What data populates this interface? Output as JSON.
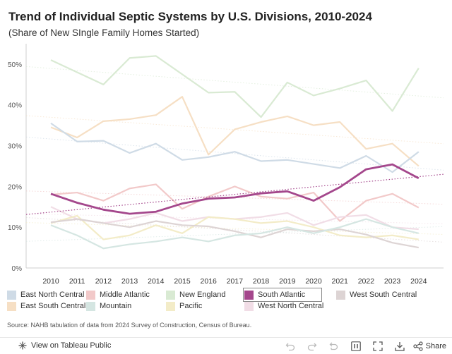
{
  "header": {
    "title": "Trend of Individual Septic Systems by U.S. Divisions, 2010-2024",
    "subtitle": "(Share of New SIngle Family Homes Started)"
  },
  "source": "Source: NAHB tabulation of data from 2024 Survey of Construction, Census of Bureau.",
  "footer": {
    "tableau_label": "View on Tableau Public",
    "share_label": "Share",
    "icons": [
      "undo-icon",
      "redo-icon",
      "revert-icon",
      "pause-icon",
      "fullscreen-icon",
      "download-icon",
      "share-icon"
    ]
  },
  "chart_data": {
    "type": "line",
    "title": "Trend of Individual Septic Systems by U.S. Divisions, 2010-2024",
    "subtitle": "(Share of New SIngle Family Homes Started)",
    "x": [
      2010,
      2011,
      2012,
      2013,
      2014,
      2015,
      2016,
      2017,
      2018,
      2019,
      2020,
      2021,
      2022,
      2023,
      2024
    ],
    "ylim": [
      0,
      55
    ],
    "yticks": [
      0,
      10,
      20,
      30,
      40,
      50
    ],
    "ytick_labels": [
      "0%",
      "10%",
      "20%",
      "30%",
      "40%",
      "50%"
    ],
    "highlighted": "South Atlantic",
    "trend_line_for": "South Atlantic",
    "series": [
      {
        "name": "New England",
        "color": "#d9ead3",
        "values": [
          51.0,
          48.0,
          45.0,
          51.5,
          52.0,
          47.5,
          43.0,
          43.2,
          37.0,
          45.5,
          42.3,
          44.0,
          46.0,
          38.5,
          49.0
        ]
      },
      {
        "name": "East South Central",
        "color": "#f6dfc4",
        "values": [
          34.5,
          32.0,
          36.0,
          36.5,
          37.5,
          42.0,
          27.8,
          34.0,
          35.8,
          37.2,
          35.0,
          35.8,
          29.2,
          30.5,
          25.0
        ]
      },
      {
        "name": "East North Central",
        "color": "#cfdbe6",
        "values": [
          35.5,
          31.0,
          31.2,
          28.2,
          30.5,
          26.5,
          27.2,
          28.5,
          26.2,
          26.5,
          25.5,
          24.5,
          27.5,
          23.5,
          28.5
        ]
      },
      {
        "name": "Middle Atlantic",
        "color": "#f2c9c9",
        "values": [
          18.0,
          18.5,
          16.5,
          19.5,
          20.5,
          14.5,
          17.5,
          20.0,
          17.5,
          17.0,
          18.5,
          11.5,
          16.5,
          18.2,
          14.8
        ]
      },
      {
        "name": "West North Central",
        "color": "#f1dde6",
        "values": [
          15.0,
          12.0,
          11.0,
          12.0,
          13.5,
          11.5,
          12.5,
          12.0,
          12.5,
          13.5,
          10.5,
          12.5,
          13.0,
          10.0,
          9.5
        ]
      },
      {
        "name": "Pacific",
        "color": "#f3ecc8",
        "values": [
          11.0,
          12.8,
          7.0,
          8.0,
          10.5,
          8.5,
          12.5,
          12.0,
          11.0,
          11.5,
          10.0,
          8.0,
          7.5,
          8.0,
          7.0
        ]
      },
      {
        "name": "West South Central",
        "color": "#ddd4d4",
        "values": [
          11.2,
          12.0,
          11.0,
          10.0,
          11.5,
          10.5,
          10.2,
          9.0,
          7.5,
          9.5,
          9.0,
          9.5,
          8.2,
          6.2,
          5.0
        ]
      },
      {
        "name": "Mountain",
        "color": "#d5e6e2",
        "values": [
          10.5,
          8.0,
          4.8,
          5.8,
          6.5,
          7.5,
          6.5,
          8.0,
          8.5,
          10.0,
          8.5,
          10.0,
          12.0,
          10.0,
          8.5
        ]
      },
      {
        "name": "South Atlantic",
        "color": "#a4478c",
        "values": [
          18.2,
          16.0,
          14.3,
          13.3,
          13.8,
          15.8,
          17.0,
          17.3,
          18.3,
          18.8,
          16.5,
          19.8,
          24.2,
          25.4,
          22.0
        ]
      }
    ],
    "legend_order": [
      "East North Central",
      "Middle Atlantic",
      "New England",
      "South Atlantic",
      "West South Central",
      "East South Central",
      "Mountain",
      "Pacific",
      "West North Central"
    ]
  }
}
